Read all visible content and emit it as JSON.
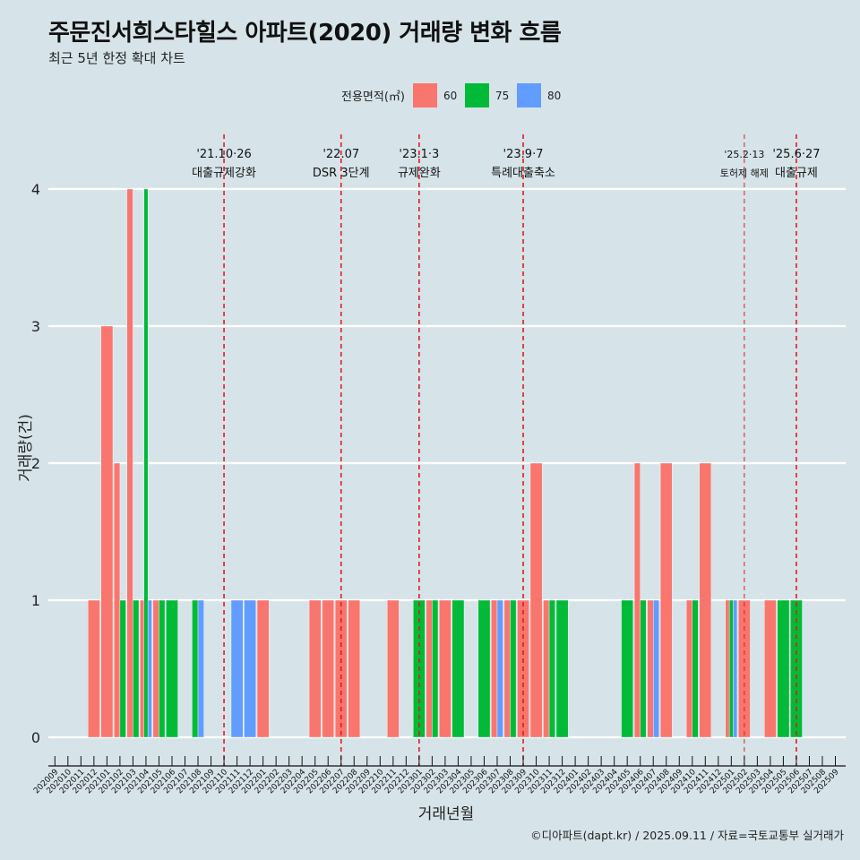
{
  "header": {
    "title": "주문진서희스타힐스 아파트(2020) 거래량 변화 흐름",
    "subtitle": "최근 5년 한정 확대 차트"
  },
  "caption": "©디아파트(dapt.kr) / 2025.09.11 / 자료=국토교통부 실거래가",
  "colors": {
    "60": "#f8766d",
    "75": "#00ba38",
    "80": "#619cff",
    "vline": "#e41a1c",
    "background": "#d6e4ea"
  },
  "chart_data": {
    "type": "bar",
    "xlabel": "거래년월",
    "ylabel": "거래량(건)",
    "ylim": [
      0,
      4
    ],
    "yticks": [
      0,
      1,
      2,
      3,
      4
    ],
    "legend": {
      "title": "전용면적(㎡)",
      "position": "top",
      "entries": [
        "60",
        "75",
        "80"
      ]
    },
    "categories": [
      "202009",
      "202010",
      "202011",
      "202012",
      "202101",
      "202102",
      "202103",
      "202104",
      "202105",
      "202106",
      "202107",
      "202108",
      "202109",
      "202110",
      "202111",
      "202112",
      "202201",
      "202202",
      "202203",
      "202204",
      "202205",
      "202206",
      "202207",
      "202208",
      "202209",
      "202210",
      "202211",
      "202212",
      "202301",
      "202302",
      "202303",
      "202304",
      "202305",
      "202306",
      "202307",
      "202308",
      "202309",
      "202310",
      "202311",
      "202312",
      "202401",
      "202402",
      "202403",
      "202404",
      "202405",
      "202406",
      "202407",
      "202408",
      "202409",
      "202410",
      "202411",
      "202412",
      "202501",
      "202502",
      "202503",
      "202504",
      "202505",
      "202506",
      "202507",
      "202508",
      "202509"
    ],
    "series": [
      {
        "name": "60",
        "values": [
          0,
          0,
          0,
          1,
          3,
          2,
          4,
          1,
          1,
          0,
          0,
          0,
          0,
          0,
          0,
          0,
          1,
          0,
          0,
          0,
          1,
          1,
          1,
          1,
          0,
          0,
          1,
          0,
          0,
          1,
          1,
          0,
          0,
          0,
          1,
          1,
          1,
          2,
          1,
          0,
          0,
          0,
          0,
          0,
          0,
          2,
          1,
          2,
          0,
          1,
          2,
          0,
          1,
          1,
          0,
          1,
          0,
          0,
          0,
          0,
          0
        ]
      },
      {
        "name": "75",
        "values": [
          0,
          0,
          0,
          0,
          0,
          1,
          1,
          4,
          1,
          1,
          0,
          1,
          0,
          0,
          0,
          0,
          0,
          0,
          0,
          0,
          0,
          0,
          0,
          0,
          0,
          0,
          0,
          0,
          1,
          1,
          0,
          1,
          0,
          1,
          0,
          1,
          0,
          0,
          1,
          1,
          0,
          0,
          0,
          0,
          1,
          1,
          0,
          0,
          0,
          1,
          0,
          0,
          1,
          0,
          0,
          0,
          1,
          1,
          0,
          0,
          0
        ]
      },
      {
        "name": "80",
        "values": [
          0,
          0,
          0,
          0,
          0,
          0,
          0,
          1,
          0,
          0,
          0,
          1,
          0,
          0,
          1,
          1,
          0,
          0,
          0,
          0,
          0,
          0,
          0,
          0,
          0,
          0,
          0,
          0,
          0,
          0,
          0,
          0,
          0,
          0,
          1,
          0,
          0,
          0,
          0,
          0,
          0,
          0,
          0,
          0,
          0,
          0,
          1,
          0,
          0,
          0,
          0,
          0,
          1,
          0,
          0,
          0,
          0,
          0,
          0,
          0,
          0
        ]
      }
    ],
    "events": [
      {
        "x": "202110",
        "date": "'21.10·26",
        "label": "대출규제강화"
      },
      {
        "x": "202207",
        "date": "'22.07",
        "label": "DSR 3단계"
      },
      {
        "x": "202301",
        "date": "'23.1·3",
        "label": "규제완화"
      },
      {
        "x": "202309",
        "date": "'23.9·7",
        "label": "특례대출축소"
      },
      {
        "x": "202502",
        "date": "'25.2·13",
        "label": "토허제 해제"
      },
      {
        "x": "202506",
        "date": "'25.6·27",
        "label": "대출규제"
      }
    ]
  }
}
